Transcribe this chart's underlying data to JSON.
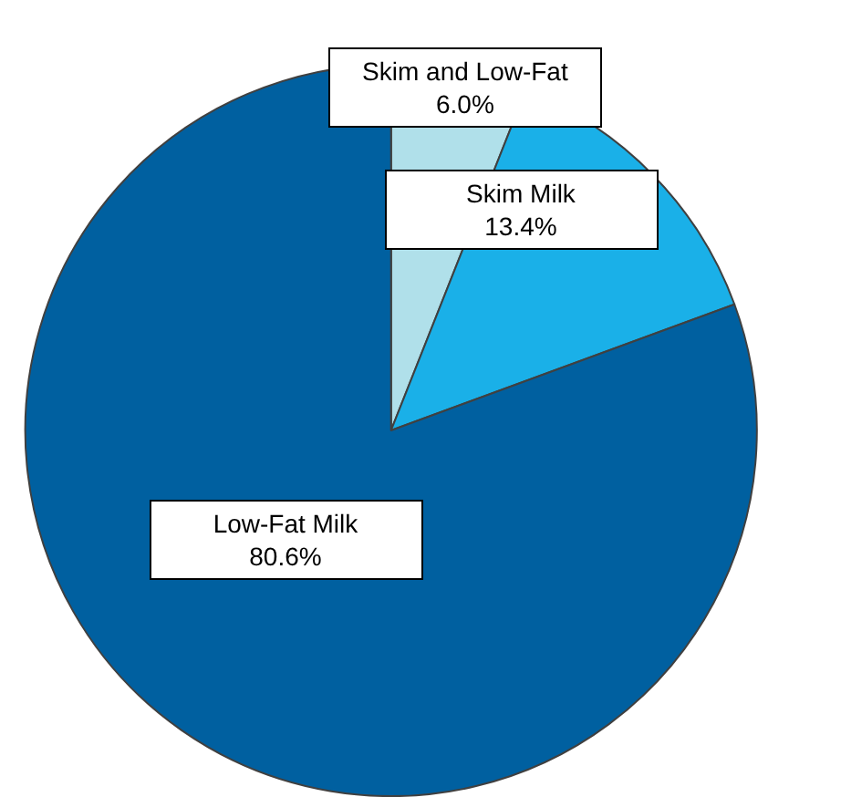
{
  "chart_data": {
    "type": "pie",
    "categories": [
      "Skim and Low-Fat",
      "Skim Milk",
      "Low-Fat Milk"
    ],
    "values": [
      6.0,
      13.4,
      80.6
    ],
    "value_labels": [
      "6.0%",
      "13.4%",
      "80.6%"
    ],
    "colors": [
      "#b0e0ea",
      "#1ab0e8",
      "#0060a0"
    ],
    "legend": false
  }
}
